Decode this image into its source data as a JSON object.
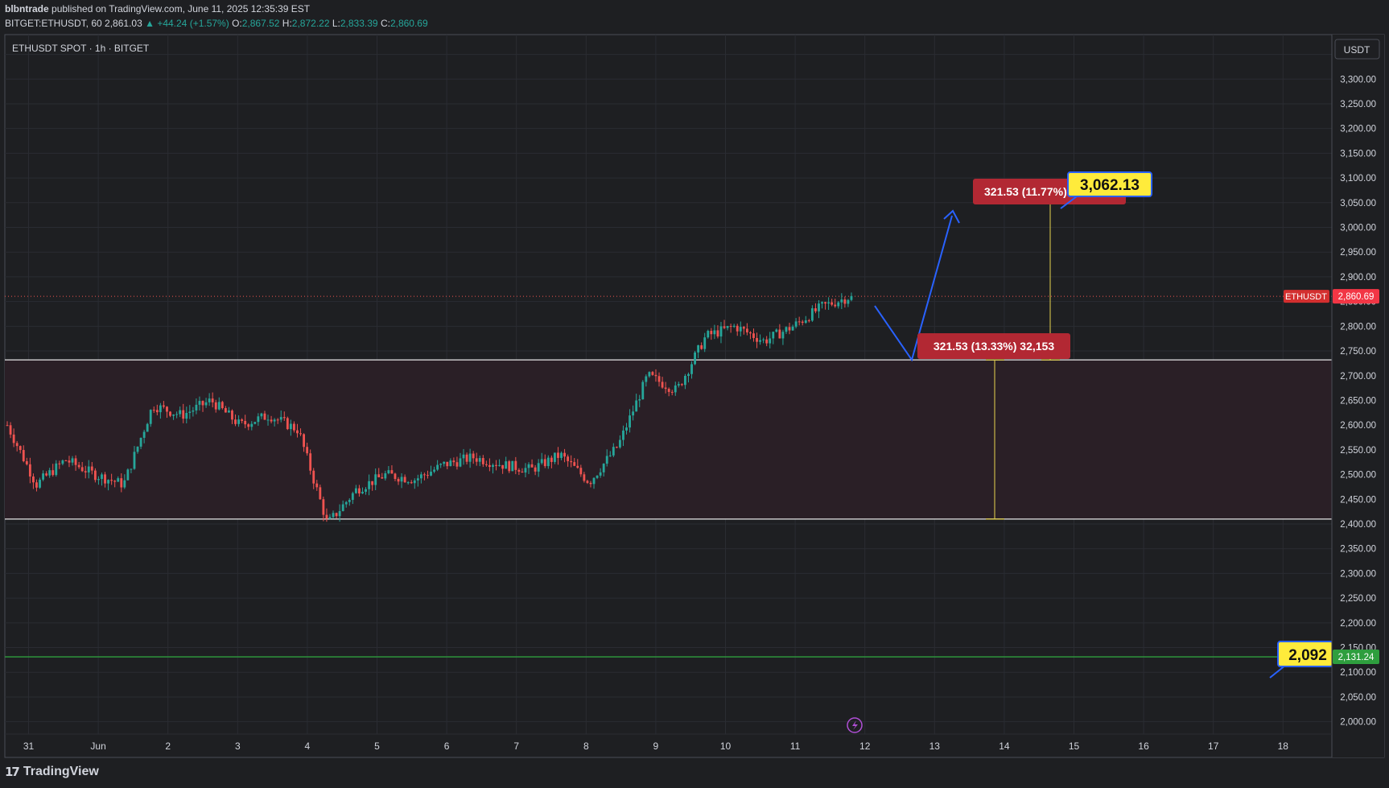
{
  "header": {
    "publisher": "blbntrade",
    "published_text": "published on TradingView.com, June 11, 2025 12:35:39 EST",
    "symbol_line": "BITGET:ETHUSDT, 60",
    "last": "2,861.03",
    "change": "▲ +44.24 (+1.57%)",
    "o_label": "O:",
    "o": "2,867.52",
    "h_label": "H:",
    "h": "2,872.22",
    "l_label": "L:",
    "l": "2,833.39",
    "c_label": "C:",
    "c": "2,860.69"
  },
  "legend_title": "ETHUSDT SPOT · 1h · BITGET",
  "currency_button": "USDT",
  "brand": "TradingView",
  "colors": {
    "background": "#1e1f22",
    "grid": "#2a2c32",
    "up": "#26a69a",
    "down": "#ef5350",
    "zone_fill": "#2a1f26",
    "support_line": "#2e9e3e",
    "arrow": "#2962ff",
    "measure": "#e8d44d",
    "label_red": "#b22833",
    "callout_yellow": "#ffeb3b"
  },
  "chart_data": {
    "type": "candlestick",
    "symbol": "ETHUSDT",
    "interval": "1h",
    "x_tick_labels": [
      "31",
      "Jun",
      "2",
      "3",
      "4",
      "5",
      "6",
      "7",
      "8",
      "9",
      "10",
      "11",
      "12",
      "13",
      "14",
      "15",
      "16",
      "17",
      "18"
    ],
    "ylim": [
      1975,
      3390
    ],
    "y_ticks": [
      2000,
      2050,
      2100,
      2150,
      2200,
      2250,
      2300,
      2350,
      2400,
      2450,
      2500,
      2550,
      2600,
      2650,
      2700,
      2750,
      2800,
      2850,
      2900,
      2950,
      3000,
      3050,
      3100,
      3150,
      3200,
      3250,
      3300,
      3350
    ],
    "y_tick_labels": [
      "2,000.00",
      "2,050.00",
      "2,100.00",
      "2,150.00",
      "2,200.00",
      "2,250.00",
      "2,300.00",
      "2,350.00",
      "2,400.00",
      "2,450.00",
      "2,500.00",
      "2,550.00",
      "2,600.00",
      "2,650.00",
      "2,700.00",
      "2,750.00",
      "2,800.00",
      "2,850.00",
      "2,900.00",
      "2,950.00",
      "3,000.00",
      "3,050.00",
      "3,100.00",
      "3,150.00",
      "3,200.00",
      "3,250.00",
      "3,300.00",
      "3,350.00"
    ],
    "day_anchors": [
      2600,
      2480,
      2530,
      2500,
      2480,
      2640,
      2620,
      2650,
      2600,
      2620,
      2590,
      2400,
      2470,
      2500,
      2490,
      2520,
      2535,
      2520,
      2510,
      2540,
      2485,
      2560,
      2700,
      2670,
      2780,
      2800,
      2770,
      2800,
      2840,
      2861
    ],
    "range_zone": {
      "top": 2732,
      "bottom": 2410
    },
    "current_price": {
      "label": "ETHUSDT",
      "value": 2860.69,
      "value_label": "2,860.69"
    },
    "support_level": {
      "value": 2131.24,
      "value_label": "2,131.24"
    },
    "annotations": {
      "measure_label_1": "321.53 (13.33%) 32,153",
      "measure_label_2": "321.53 (11.77%)",
      "target_callout": "3,062.13",
      "support_callout": "2,092",
      "target_value": 3054,
      "measure_base": 2732,
      "measure_low": 2410
    }
  }
}
